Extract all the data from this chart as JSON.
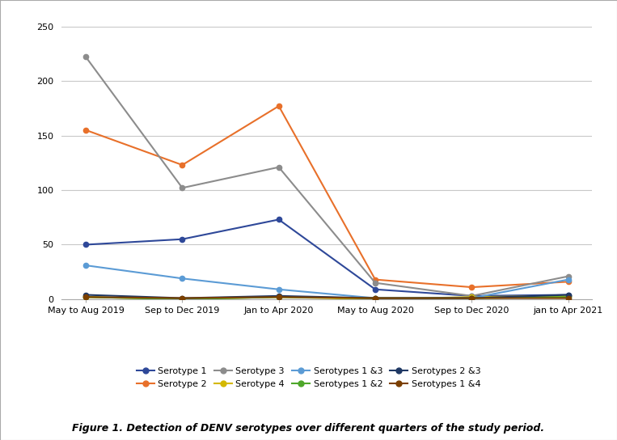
{
  "x_labels": [
    "May to Aug 2019",
    "Sep to Dec 2019",
    "Jan to Apr 2020",
    "May to Aug 2020",
    "Sep to Dec 2020",
    "jan to Apr 2021"
  ],
  "series": [
    {
      "name": "Serotype 1",
      "values": [
        50,
        55,
        73,
        9,
        3,
        4
      ],
      "color": "#2E4899",
      "marker": "o",
      "linewidth": 1.5
    },
    {
      "name": "Serotype 2",
      "values": [
        155,
        123,
        177,
        18,
        11,
        16
      ],
      "color": "#E8702A",
      "marker": "o",
      "linewidth": 1.5
    },
    {
      "name": "Serotype 3",
      "values": [
        222,
        102,
        121,
        15,
        3,
        21
      ],
      "color": "#8C8C8C",
      "marker": "o",
      "linewidth": 1.5
    },
    {
      "name": "Serotype 4",
      "values": [
        2,
        0,
        2,
        0,
        2,
        3
      ],
      "color": "#D4B800",
      "marker": "o",
      "linewidth": 1.5
    },
    {
      "name": "Serotypes 1 &3",
      "values": [
        31,
        19,
        9,
        1,
        1,
        18
      ],
      "color": "#5B9BD5",
      "marker": "o",
      "linewidth": 1.5
    },
    {
      "name": "Serotypes 1 &2",
      "values": [
        2,
        0,
        2,
        1,
        1,
        2
      ],
      "color": "#4EA72A",
      "marker": "o",
      "linewidth": 1.5
    },
    {
      "name": "Serotypes 2 &3",
      "values": [
        4,
        1,
        3,
        1,
        1,
        4
      ],
      "color": "#1F3864",
      "marker": "o",
      "linewidth": 1.5
    },
    {
      "name": "Serotypes 1 &4",
      "values": [
        2,
        1,
        2,
        1,
        1,
        1
      ],
      "color": "#7B3F00",
      "marker": "o",
      "linewidth": 1.5
    }
  ],
  "legend_order": [
    0,
    1,
    2,
    3,
    4,
    5,
    6,
    7
  ],
  "ylim": [
    0,
    250
  ],
  "yticks": [
    0,
    50,
    100,
    150,
    200,
    250
  ],
  "background_color": "#FFFFFF",
  "plot_background": "#FFFFFF",
  "grid_color": "#C8C8C8",
  "caption": "Figure 1. Detection of DENV serotypes over different quarters of the study period.",
  "figsize": [
    7.63,
    5.44
  ],
  "dpi": 100,
  "outer_border_color": "#AAAAAA",
  "tick_label_fontsize": 8,
  "legend_fontsize": 8,
  "caption_fontsize": 9
}
